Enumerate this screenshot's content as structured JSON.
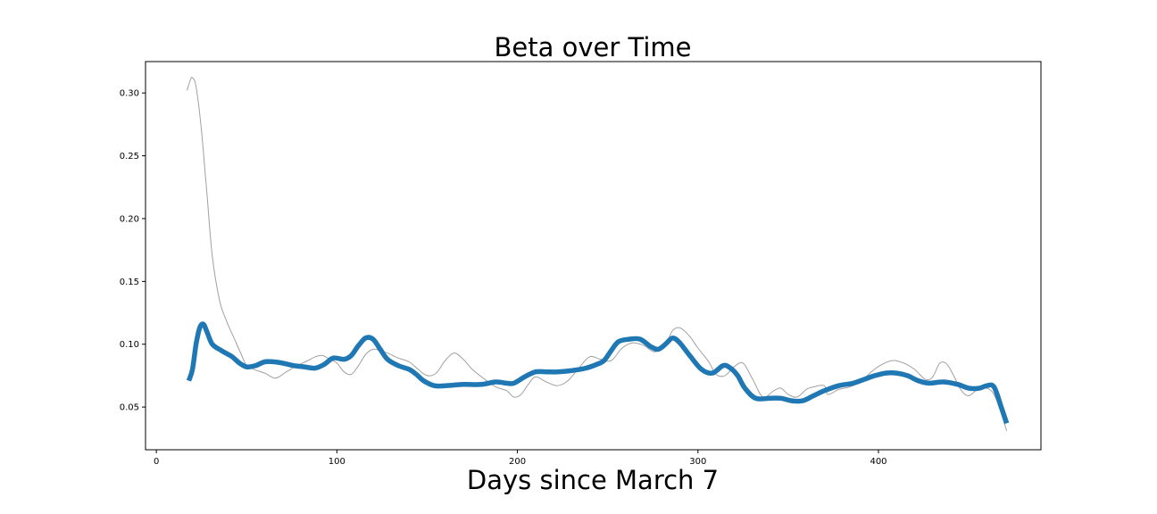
{
  "chart_data": {
    "type": "line",
    "title": "Beta over Time",
    "xlabel": "Days since March 7",
    "ylabel": "",
    "xlim": [
      -6,
      490
    ],
    "ylim": [
      0.016,
      0.325
    ],
    "x_ticks": [
      0,
      100,
      200,
      300,
      400
    ],
    "y_ticks": [
      0.05,
      0.1,
      0.15,
      0.2,
      0.25,
      0.3
    ],
    "x_tick_labels": [
      "0",
      "100",
      "200",
      "300",
      "400"
    ],
    "y_tick_labels": [
      "0.05",
      "0.10",
      "0.15",
      "0.20",
      "0.25",
      "0.30"
    ],
    "grid": false,
    "legend": "none",
    "series": [
      {
        "color": "#a0a0a0",
        "style": "thin",
        "points": [
          [
            17,
            0.302
          ],
          [
            19,
            0.311
          ],
          [
            20,
            0.312
          ],
          [
            22,
            0.305
          ],
          [
            25,
            0.27
          ],
          [
            28,
            0.22
          ],
          [
            31,
            0.17
          ],
          [
            35,
            0.135
          ],
          [
            39,
            0.118
          ],
          [
            43,
            0.105
          ],
          [
            47,
            0.092
          ],
          [
            50,
            0.083
          ],
          [
            54,
            0.08
          ],
          [
            60,
            0.077
          ],
          [
            66,
            0.073
          ],
          [
            72,
            0.078
          ],
          [
            78,
            0.083
          ],
          [
            84,
            0.087
          ],
          [
            88,
            0.09
          ],
          [
            92,
            0.091
          ],
          [
            96,
            0.088
          ],
          [
            100,
            0.085
          ],
          [
            104,
            0.078
          ],
          [
            108,
            0.076
          ],
          [
            112,
            0.083
          ],
          [
            116,
            0.092
          ],
          [
            120,
            0.096
          ],
          [
            124,
            0.095
          ],
          [
            128,
            0.093
          ],
          [
            134,
            0.089
          ],
          [
            140,
            0.086
          ],
          [
            145,
            0.08
          ],
          [
            150,
            0.075
          ],
          [
            155,
            0.077
          ],
          [
            160,
            0.087
          ],
          [
            165,
            0.093
          ],
          [
            170,
            0.088
          ],
          [
            175,
            0.08
          ],
          [
            182,
            0.072
          ],
          [
            188,
            0.066
          ],
          [
            194,
            0.063
          ],
          [
            198,
            0.058
          ],
          [
            202,
            0.06
          ],
          [
            206,
            0.068
          ],
          [
            210,
            0.074
          ],
          [
            216,
            0.07
          ],
          [
            222,
            0.067
          ],
          [
            228,
            0.071
          ],
          [
            234,
            0.081
          ],
          [
            240,
            0.09
          ],
          [
            246,
            0.088
          ],
          [
            252,
            0.087
          ],
          [
            258,
            0.097
          ],
          [
            264,
            0.101
          ],
          [
            270,
            0.099
          ],
          [
            276,
            0.094
          ],
          [
            282,
            0.1
          ],
          [
            286,
            0.111
          ],
          [
            290,
            0.113
          ],
          [
            295,
            0.107
          ],
          [
            300,
            0.097
          ],
          [
            306,
            0.086
          ],
          [
            310,
            0.076
          ],
          [
            315,
            0.075
          ],
          [
            320,
            0.082
          ],
          [
            325,
            0.085
          ],
          [
            330,
            0.073
          ],
          [
            336,
            0.058
          ],
          [
            342,
            0.063
          ],
          [
            346,
            0.065
          ],
          [
            350,
            0.06
          ],
          [
            355,
            0.058
          ],
          [
            360,
            0.064
          ],
          [
            364,
            0.066
          ],
          [
            370,
            0.067
          ],
          [
            372,
            0.06
          ],
          [
            378,
            0.064
          ],
          [
            384,
            0.066
          ],
          [
            390,
            0.07
          ],
          [
            396,
            0.078
          ],
          [
            402,
            0.084
          ],
          [
            408,
            0.087
          ],
          [
            414,
            0.085
          ],
          [
            420,
            0.08
          ],
          [
            426,
            0.072
          ],
          [
            430,
            0.074
          ],
          [
            434,
            0.085
          ],
          [
            438,
            0.084
          ],
          [
            442,
            0.074
          ],
          [
            446,
            0.063
          ],
          [
            450,
            0.059
          ],
          [
            455,
            0.064
          ],
          [
            460,
            0.065
          ],
          [
            464,
            0.06
          ],
          [
            468,
            0.045
          ],
          [
            471,
            0.031
          ]
        ]
      },
      {
        "color": "#1f77b4",
        "style": "thick",
        "points": [
          [
            18,
            0.071
          ],
          [
            20,
            0.08
          ],
          [
            22,
            0.1
          ],
          [
            24,
            0.113
          ],
          [
            26,
            0.116
          ],
          [
            28,
            0.11
          ],
          [
            31,
            0.1
          ],
          [
            36,
            0.095
          ],
          [
            42,
            0.09
          ],
          [
            46,
            0.085
          ],
          [
            50,
            0.082
          ],
          [
            55,
            0.083
          ],
          [
            60,
            0.086
          ],
          [
            65,
            0.086
          ],
          [
            70,
            0.085
          ],
          [
            76,
            0.083
          ],
          [
            82,
            0.082
          ],
          [
            88,
            0.081
          ],
          [
            93,
            0.084
          ],
          [
            98,
            0.089
          ],
          [
            104,
            0.088
          ],
          [
            108,
            0.091
          ],
          [
            112,
            0.099
          ],
          [
            116,
            0.105
          ],
          [
            120,
            0.104
          ],
          [
            124,
            0.096
          ],
          [
            128,
            0.088
          ],
          [
            134,
            0.083
          ],
          [
            140,
            0.08
          ],
          [
            144,
            0.076
          ],
          [
            148,
            0.071
          ],
          [
            154,
            0.067
          ],
          [
            160,
            0.067
          ],
          [
            170,
            0.068
          ],
          [
            180,
            0.068
          ],
          [
            188,
            0.07
          ],
          [
            194,
            0.069
          ],
          [
            198,
            0.069
          ],
          [
            204,
            0.074
          ],
          [
            210,
            0.078
          ],
          [
            216,
            0.078
          ],
          [
            222,
            0.078
          ],
          [
            230,
            0.079
          ],
          [
            238,
            0.081
          ],
          [
            244,
            0.084
          ],
          [
            248,
            0.087
          ],
          [
            252,
            0.095
          ],
          [
            256,
            0.102
          ],
          [
            262,
            0.104
          ],
          [
            268,
            0.104
          ],
          [
            274,
            0.098
          ],
          [
            278,
            0.096
          ],
          [
            282,
            0.1
          ],
          [
            286,
            0.105
          ],
          [
            290,
            0.101
          ],
          [
            296,
            0.09
          ],
          [
            302,
            0.08
          ],
          [
            308,
            0.077
          ],
          [
            314,
            0.083
          ],
          [
            318,
            0.081
          ],
          [
            322,
            0.075
          ],
          [
            326,
            0.065
          ],
          [
            332,
            0.057
          ],
          [
            340,
            0.057
          ],
          [
            346,
            0.057
          ],
          [
            352,
            0.055
          ],
          [
            358,
            0.055
          ],
          [
            364,
            0.059
          ],
          [
            370,
            0.063
          ],
          [
            378,
            0.067
          ],
          [
            386,
            0.069
          ],
          [
            392,
            0.072
          ],
          [
            398,
            0.075
          ],
          [
            404,
            0.077
          ],
          [
            410,
            0.077
          ],
          [
            416,
            0.075
          ],
          [
            422,
            0.071
          ],
          [
            428,
            0.069
          ],
          [
            436,
            0.07
          ],
          [
            444,
            0.068
          ],
          [
            450,
            0.065
          ],
          [
            456,
            0.065
          ],
          [
            460,
            0.067
          ],
          [
            464,
            0.066
          ],
          [
            468,
            0.05
          ],
          [
            471,
            0.037
          ]
        ]
      }
    ]
  }
}
